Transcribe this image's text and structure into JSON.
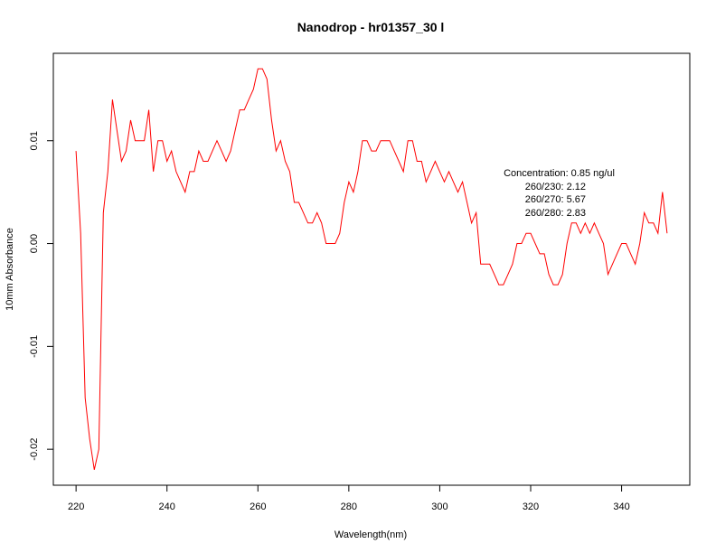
{
  "chart_data": {
    "type": "line",
    "title": "Nanodrop - hr01357_30 l",
    "xlabel": "Wavelength(nm)",
    "ylabel": "10mm Absorbance",
    "xlim": [
      215,
      355
    ],
    "ylim": [
      -0.0235,
      0.0185
    ],
    "x_ticks": [
      220,
      240,
      260,
      280,
      300,
      320,
      340
    ],
    "y_ticks": [
      -0.02,
      -0.01,
      0.0,
      0.01
    ],
    "x_tick_labels": [
      "220",
      "240",
      "260",
      "280",
      "300",
      "320",
      "340"
    ],
    "y_tick_labels": [
      "-0.02",
      "-0.01",
      "0.00",
      "0.01"
    ],
    "grid": false,
    "series": [
      {
        "color": "#ff0000",
        "x": [
          220,
          221,
          222,
          223,
          224,
          225,
          226,
          227,
          228,
          229,
          230,
          231,
          232,
          233,
          234,
          235,
          236,
          237,
          238,
          239,
          240,
          241,
          242,
          243,
          244,
          245,
          246,
          247,
          248,
          249,
          250,
          251,
          252,
          253,
          254,
          255,
          256,
          257,
          258,
          259,
          260,
          261,
          262,
          263,
          264,
          265,
          266,
          267,
          268,
          269,
          270,
          271,
          272,
          273,
          274,
          275,
          276,
          277,
          278,
          279,
          280,
          281,
          282,
          283,
          284,
          285,
          286,
          287,
          288,
          289,
          290,
          291,
          292,
          293,
          294,
          295,
          296,
          297,
          298,
          299,
          300,
          301,
          302,
          303,
          304,
          305,
          306,
          307,
          308,
          309,
          310,
          311,
          312,
          313,
          314,
          315,
          316,
          317,
          318,
          319,
          320,
          321,
          322,
          323,
          324,
          325,
          326,
          327,
          328,
          329,
          330,
          331,
          332,
          333,
          334,
          335,
          336,
          337,
          338,
          339,
          340,
          341,
          342,
          343,
          344,
          345,
          346,
          347,
          348,
          349,
          350
        ],
        "y": [
          0.009,
          0.001,
          -0.015,
          -0.019,
          -0.022,
          -0.02,
          0.003,
          0.007,
          0.014,
          0.011,
          0.008,
          0.009,
          0.012,
          0.01,
          0.01,
          0.01,
          0.013,
          0.007,
          0.01,
          0.01,
          0.008,
          0.009,
          0.007,
          0.006,
          0.005,
          0.007,
          0.007,
          0.009,
          0.008,
          0.008,
          0.009,
          0.01,
          0.009,
          0.008,
          0.009,
          0.011,
          0.013,
          0.013,
          0.014,
          0.015,
          0.017,
          0.017,
          0.016,
          0.012,
          0.009,
          0.01,
          0.008,
          0.007,
          0.004,
          0.004,
          0.003,
          0.002,
          0.002,
          0.003,
          0.002,
          0.0,
          0.0,
          0.0,
          0.001,
          0.004,
          0.006,
          0.005,
          0.007,
          0.01,
          0.01,
          0.009,
          0.009,
          0.01,
          0.01,
          0.01,
          0.009,
          0.008,
          0.007,
          0.01,
          0.01,
          0.008,
          0.008,
          0.006,
          0.007,
          0.008,
          0.007,
          0.006,
          0.007,
          0.006,
          0.005,
          0.006,
          0.004,
          0.002,
          0.003,
          -0.002,
          -0.002,
          -0.002,
          -0.003,
          -0.004,
          -0.004,
          -0.003,
          -0.002,
          0.0,
          0.0,
          0.001,
          0.001,
          0.0,
          -0.001,
          -0.001,
          -0.003,
          -0.004,
          -0.004,
          -0.003,
          0.0,
          0.002,
          0.002,
          0.001,
          0.002,
          0.001,
          0.002,
          0.001,
          0.0,
          -0.003,
          -0.002,
          -0.001,
          0.0,
          0.0,
          -0.001,
          -0.002,
          0.0,
          0.003,
          0.002,
          0.002,
          0.001,
          0.005,
          0.001
        ]
      }
    ],
    "annotations": {
      "concentration": "Concentration: 0.85 ng/ul",
      "ratio_230": "260/230: 2.12",
      "ratio_270": "260/270: 5.67",
      "ratio_280": "260/280: 2.83"
    }
  }
}
